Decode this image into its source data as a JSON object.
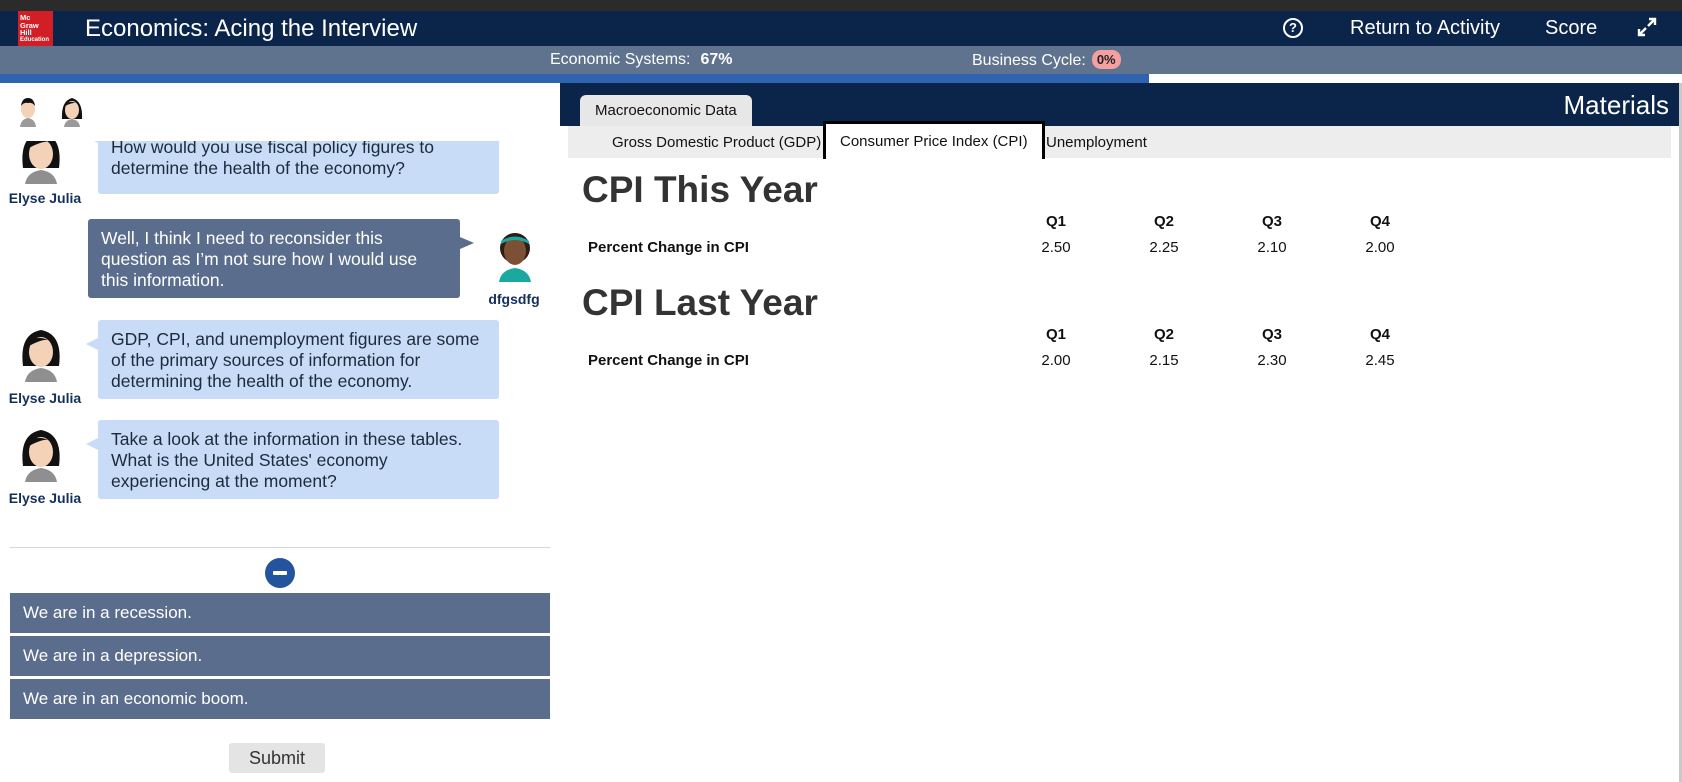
{
  "header": {
    "logo_lines": [
      "Mc",
      "Graw",
      "Hill",
      "Education"
    ],
    "title": "Economics: Acing the Interview",
    "help_label": "?",
    "return_label": "Return to Activity",
    "score_label": "Score"
  },
  "status": {
    "economic_systems_label": "Economic Systems:",
    "economic_systems_value": "67%",
    "business_cycle_label": "Business Cycle:",
    "business_cycle_value": "0%",
    "progress_fraction": 0.683
  },
  "chat": {
    "messages": [
      {
        "speaker": "Elyse Julia",
        "text": "How would you use fiscal policy figures to determine the health of the economy?",
        "side": "in"
      },
      {
        "speaker": "dfgsdfg",
        "text": "Well, I think I need to reconsider this question as I’m not sure how I would use this information.",
        "side": "out"
      },
      {
        "speaker": "Elyse Julia",
        "text": "GDP, CPI, and unemployment figures are some of the primary sources of information for determining the health of the economy.",
        "side": "in"
      },
      {
        "speaker": "Elyse Julia",
        "text": "Take a look at the information in these tables. What is the United States' economy experiencing at the moment?",
        "side": "in"
      }
    ],
    "options": [
      "We are in a recession.",
      "We are in a depression.",
      "We are in an economic boom."
    ],
    "submit_label": "Submit"
  },
  "materials": {
    "title": "Materials",
    "main_tab": "Macroeconomic Data",
    "subtabs": [
      "Gross Domestic Product (GDP)",
      "Consumer Price Index (CPI)",
      "Unemployment"
    ],
    "active_subtab": "Consumer Price Index (CPI)",
    "tables": [
      {
        "title": "CPI This Year",
        "columns": [
          "Q1",
          "Q2",
          "Q3",
          "Q4"
        ],
        "row_label": "Percent Change in CPI",
        "values": [
          "2.50",
          "2.25",
          "2.10",
          "2.00"
        ]
      },
      {
        "title": "CPI Last Year",
        "columns": [
          "Q1",
          "Q2",
          "Q3",
          "Q4"
        ],
        "row_label": "Percent Change in CPI",
        "values": [
          "2.00",
          "2.15",
          "2.30",
          "2.45"
        ]
      }
    ]
  },
  "colors": {
    "header_bg": "#0b2449",
    "status_bg": "#5f738f",
    "progress": "#2f63b0",
    "bubble_in": "#c8dcf7",
    "bubble_out": "#5b6d8c",
    "logo_red": "#d21f26"
  }
}
